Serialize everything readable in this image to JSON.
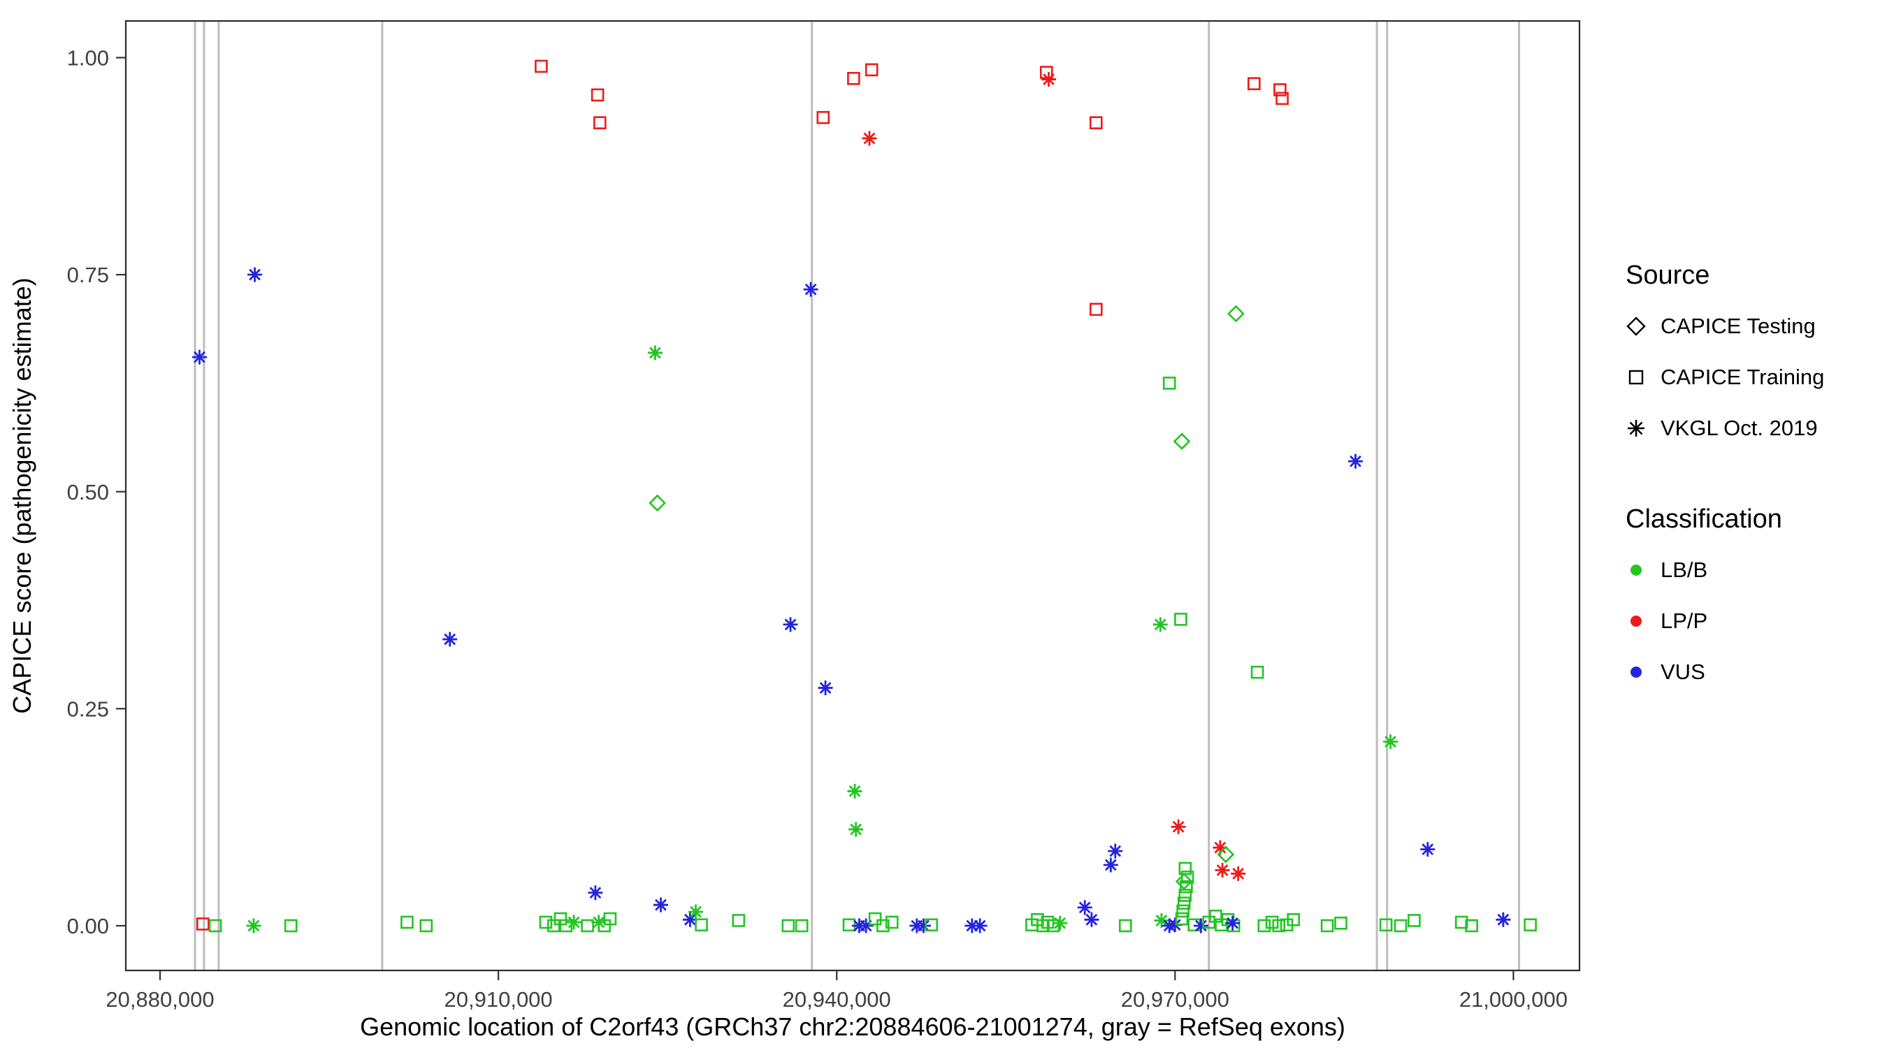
{
  "chart_data": {
    "type": "scatter",
    "title": "",
    "xlabel": "Genomic location of C2orf43 (GRCh37 chr2:20884606-21001274, gray = RefSeq exons)",
    "ylabel": "CAPICE score (pathogenicity estimate)",
    "xlim": [
      20877000,
      21006000
    ],
    "ylim": [
      -0.05,
      1.04
    ],
    "grid": false,
    "legend_position": "right",
    "x_ticks": {
      "values": [
        20880000,
        20910000,
        20940000,
        20970000,
        21000000
      ],
      "labels": [
        "20,880,000",
        "20,910,000",
        "20,940,000",
        "20,970,000",
        "21,000,000"
      ]
    },
    "y_ticks": {
      "values": [
        0,
        0.25,
        0.5,
        0.75,
        1.0
      ],
      "labels": [
        "0.00",
        "0.25",
        "0.50",
        "0.75",
        "1.00"
      ]
    },
    "exon_line_color": "#bdbdbd",
    "exon_lines": [
      20883100,
      20883900,
      20885200,
      20899700,
      20937800,
      20973000,
      20987900,
      20988800,
      21000500
    ],
    "colors": {
      "LB/B": "#22c522",
      "LP/P": "#ee1a1a",
      "VUS": "#2424dd"
    },
    "shapes": {
      "CAPICE Testing": "diamond",
      "CAPICE Training": "square",
      "VKGL Oct. 2019": "asterisk"
    },
    "point_format": [
      "x",
      "y",
      "shape",
      "classification"
    ],
    "points": [
      [
        20883500,
        0.655,
        "asterisk",
        "VUS"
      ],
      [
        20888400,
        0.75,
        "asterisk",
        "VUS"
      ],
      [
        20905700,
        0.33,
        "asterisk",
        "VUS"
      ],
      [
        20913800,
        0.99,
        "square",
        "LP/P"
      ],
      [
        20918800,
        0.957,
        "square",
        "LP/P"
      ],
      [
        20919000,
        0.925,
        "square",
        "LP/P"
      ],
      [
        20923900,
        0.66,
        "asterisk",
        "LB/B"
      ],
      [
        20924100,
        0.487,
        "diamond",
        "LB/B"
      ],
      [
        20935900,
        0.347,
        "asterisk",
        "VUS"
      ],
      [
        20937700,
        0.733,
        "asterisk",
        "VUS"
      ],
      [
        20938800,
        0.931,
        "square",
        "LP/P"
      ],
      [
        20939000,
        0.274,
        "asterisk",
        "VUS"
      ],
      [
        20941500,
        0.976,
        "square",
        "LP/P"
      ],
      [
        20943100,
        0.986,
        "square",
        "LP/P"
      ],
      [
        20942900,
        0.907,
        "asterisk",
        "LP/P"
      ],
      [
        20941600,
        0.155,
        "asterisk",
        "LB/B"
      ],
      [
        20941700,
        0.111,
        "asterisk",
        "LB/B"
      ],
      [
        20958600,
        0.983,
        "square",
        "LP/P"
      ],
      [
        20958800,
        0.975,
        "asterisk",
        "LP/P"
      ],
      [
        20963000,
        0.925,
        "square",
        "LP/P"
      ],
      [
        20963000,
        0.71,
        "square",
        "LP/P"
      ],
      [
        20969500,
        0.625,
        "square",
        "LB/B"
      ],
      [
        20968700,
        0.347,
        "asterisk",
        "LB/B"
      ],
      [
        20970500,
        0.353,
        "square",
        "LB/B"
      ],
      [
        20970600,
        0.558,
        "diamond",
        "LB/B"
      ],
      [
        20975400,
        0.705,
        "diamond",
        "LB/B"
      ],
      [
        20977000,
        0.97,
        "square",
        "LP/P"
      ],
      [
        20979300,
        0.963,
        "square",
        "LP/P"
      ],
      [
        20979500,
        0.953,
        "square",
        "LP/P"
      ],
      [
        20977300,
        0.292,
        "square",
        "LB/B"
      ],
      [
        20986000,
        0.535,
        "asterisk",
        "VUS"
      ],
      [
        20989100,
        0.212,
        "asterisk",
        "LB/B"
      ],
      [
        20992400,
        0.088,
        "asterisk",
        "VUS"
      ],
      [
        20964700,
        0.086,
        "asterisk",
        "VUS"
      ],
      [
        20964300,
        0.07,
        "asterisk",
        "VUS"
      ],
      [
        20970300,
        0.114,
        "asterisk",
        "LP/P"
      ],
      [
        20974000,
        0.09,
        "asterisk",
        "LP/P"
      ],
      [
        20974200,
        0.064,
        "asterisk",
        "LP/P"
      ],
      [
        20975600,
        0.06,
        "asterisk",
        "LP/P"
      ],
      [
        20883800,
        0.002,
        "square",
        "LP/P"
      ],
      [
        20884900,
        0.0,
        "square",
        "LB/B"
      ],
      [
        20888300,
        0.0,
        "asterisk",
        "LB/B"
      ],
      [
        20891600,
        0.0,
        "square",
        "LB/B"
      ],
      [
        20901900,
        0.004,
        "square",
        "LB/B"
      ],
      [
        20903600,
        0.0,
        "square",
        "LB/B"
      ],
      [
        20914200,
        0.004,
        "square",
        "LB/B"
      ],
      [
        20914900,
        0.0,
        "square",
        "LB/B"
      ],
      [
        20915500,
        0.008,
        "square",
        "LB/B"
      ],
      [
        20916000,
        0.0,
        "square",
        "LB/B"
      ],
      [
        20916700,
        0.004,
        "asterisk",
        "LB/B"
      ],
      [
        20917900,
        0.0,
        "square",
        "LB/B"
      ],
      [
        20918600,
        0.038,
        "asterisk",
        "VUS"
      ],
      [
        20918900,
        0.004,
        "asterisk",
        "LB/B"
      ],
      [
        20919400,
        0.0,
        "square",
        "LB/B"
      ],
      [
        20919900,
        0.008,
        "square",
        "LB/B"
      ],
      [
        20924400,
        0.024,
        "asterisk",
        "VUS"
      ],
      [
        20927000,
        0.007,
        "asterisk",
        "VUS"
      ],
      [
        20927500,
        0.016,
        "asterisk",
        "LB/B"
      ],
      [
        20928000,
        0.001,
        "square",
        "LB/B"
      ],
      [
        20931300,
        0.006,
        "square",
        "LB/B"
      ],
      [
        20935700,
        0.0,
        "square",
        "LB/B"
      ],
      [
        20936900,
        0.0,
        "square",
        "LB/B"
      ],
      [
        20941100,
        0.001,
        "square",
        "LB/B"
      ],
      [
        20942000,
        0.0,
        "asterisk",
        "VUS"
      ],
      [
        20942600,
        0.0,
        "asterisk",
        "VUS"
      ],
      [
        20943400,
        0.008,
        "square",
        "LB/B"
      ],
      [
        20944100,
        0.0,
        "square",
        "LB/B"
      ],
      [
        20944900,
        0.004,
        "square",
        "LB/B"
      ],
      [
        20947100,
        0.0,
        "asterisk",
        "VUS"
      ],
      [
        20947700,
        0.0,
        "asterisk",
        "VUS"
      ],
      [
        20948400,
        0.001,
        "square",
        "LB/B"
      ],
      [
        20952000,
        0.0,
        "asterisk",
        "VUS"
      ],
      [
        20952700,
        0.0,
        "asterisk",
        "VUS"
      ],
      [
        20957300,
        0.001,
        "square",
        "LB/B"
      ],
      [
        20957800,
        0.007,
        "square",
        "LB/B"
      ],
      [
        20958300,
        0.0,
        "square",
        "LB/B"
      ],
      [
        20958700,
        0.004,
        "square",
        "LB/B"
      ],
      [
        20959200,
        0.0,
        "square",
        "LB/B"
      ],
      [
        20959800,
        0.003,
        "asterisk",
        "LB/B"
      ],
      [
        20962000,
        0.021,
        "asterisk",
        "VUS"
      ],
      [
        20962600,
        0.007,
        "asterisk",
        "VUS"
      ],
      [
        20965600,
        0.0,
        "square",
        "LB/B"
      ],
      [
        20968800,
        0.006,
        "asterisk",
        "LB/B"
      ],
      [
        20969500,
        0.0,
        "asterisk",
        "VUS"
      ],
      [
        20970000,
        0.001,
        "asterisk",
        "VUS"
      ],
      [
        20970600,
        0.008,
        "square",
        "LB/B"
      ],
      [
        20970700,
        0.017,
        "square",
        "LB/B"
      ],
      [
        20970800,
        0.026,
        "square",
        "LB/B"
      ],
      [
        20970900,
        0.035,
        "square",
        "LB/B"
      ],
      [
        20971000,
        0.045,
        "square",
        "LB/B"
      ],
      [
        20971100,
        0.056,
        "square",
        "LB/B"
      ],
      [
        20970900,
        0.066,
        "square",
        "LB/B"
      ],
      [
        20970800,
        0.051,
        "diamond",
        "LB/B"
      ],
      [
        20971700,
        0.001,
        "square",
        "LB/B"
      ],
      [
        20972300,
        0.0,
        "asterisk",
        "VUS"
      ],
      [
        20973000,
        0.004,
        "square",
        "LB/B"
      ],
      [
        20973600,
        0.011,
        "square",
        "LB/B"
      ],
      [
        20974100,
        0.001,
        "square",
        "LB/B"
      ],
      [
        20974700,
        0.007,
        "square",
        "LB/B"
      ],
      [
        20975200,
        0.0,
        "square",
        "LB/B"
      ],
      [
        20974500,
        0.082,
        "diamond",
        "LB/B"
      ],
      [
        20975100,
        0.003,
        "asterisk",
        "VUS"
      ],
      [
        20977900,
        0.0,
        "square",
        "LB/B"
      ],
      [
        20978600,
        0.004,
        "square",
        "LB/B"
      ],
      [
        20979200,
        0.0,
        "square",
        "LB/B"
      ],
      [
        20979900,
        0.001,
        "square",
        "LB/B"
      ],
      [
        20980500,
        0.007,
        "square",
        "LB/B"
      ],
      [
        20983500,
        0.0,
        "square",
        "LB/B"
      ],
      [
        20984700,
        0.003,
        "square",
        "LB/B"
      ],
      [
        20988700,
        0.001,
        "square",
        "LB/B"
      ],
      [
        20990000,
        0.0,
        "square",
        "LB/B"
      ],
      [
        20991200,
        0.006,
        "square",
        "LB/B"
      ],
      [
        20995400,
        0.004,
        "square",
        "LB/B"
      ],
      [
        20996300,
        0.0,
        "square",
        "LB/B"
      ],
      [
        20999100,
        0.007,
        "asterisk",
        "VUS"
      ],
      [
        21001500,
        0.001,
        "square",
        "LB/B"
      ]
    ]
  },
  "legend": {
    "source": {
      "title": "Source",
      "items": [
        {
          "label": "CAPICE Testing",
          "shape": "diamond"
        },
        {
          "label": "CAPICE Training",
          "shape": "square"
        },
        {
          "label": "VKGL Oct. 2019",
          "shape": "asterisk"
        }
      ]
    },
    "classification": {
      "title": "Classification",
      "items": [
        {
          "label": "LB/B",
          "color": "#22c522"
        },
        {
          "label": "LP/P",
          "color": "#ee1a1a"
        },
        {
          "label": "VUS",
          "color": "#2424dd"
        }
      ]
    }
  }
}
